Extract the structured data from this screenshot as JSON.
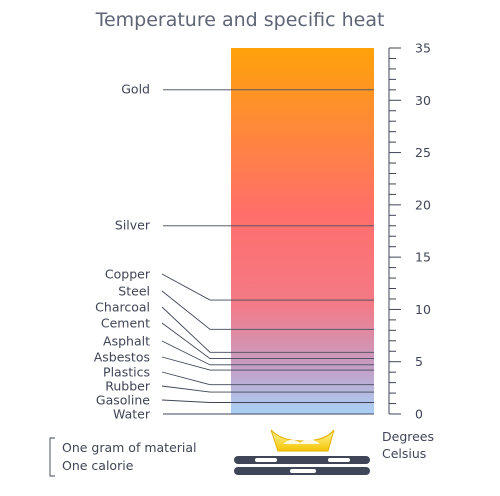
{
  "title": "Temperature and specific heat",
  "axis": {
    "min": 0,
    "max": 35,
    "major_step": 5,
    "minor_step": 1,
    "unit_line1": "Degrees",
    "unit_line2": "Celsius"
  },
  "materials": [
    {
      "name": "Gold",
      "value": 31
    },
    {
      "name": "Silver",
      "value": 18
    },
    {
      "name": "Copper",
      "value": 10.9
    },
    {
      "name": "Steel",
      "value": 8.1
    },
    {
      "name": "Charcoal",
      "value": 5.9
    },
    {
      "name": "Cement",
      "value": 5.3
    },
    {
      "name": "Asphalt",
      "value": 4.7
    },
    {
      "name": "Asbestos",
      "value": 4.2
    },
    {
      "name": "Plastics",
      "value": 2.8
    },
    {
      "name": "Rubber",
      "value": 2.1
    },
    {
      "name": "Gasoline",
      "value": 1.1
    },
    {
      "name": "Water",
      "value": 0
    }
  ],
  "legend": {
    "line1": "One gram of material",
    "line2": "One calorie"
  },
  "colors": {
    "top": "#ffa20a",
    "mid": "#ff6e6a",
    "pink": "#f37a86",
    "bottom": "#a9d1f7",
    "text": "#3f4556"
  }
}
